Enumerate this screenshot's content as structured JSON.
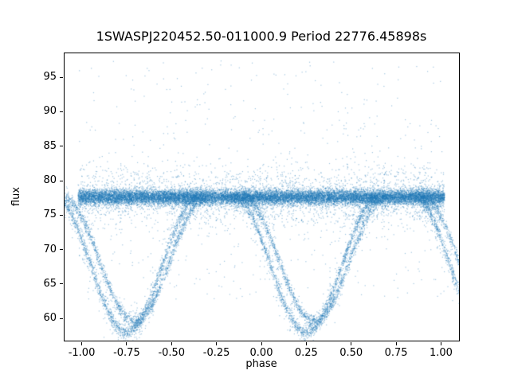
{
  "figure": {
    "background": "#ffffff",
    "axis_color": "#000000",
    "dot_color": "#1f77b4",
    "dot_alpha": 0.42
  },
  "chart_data": {
    "type": "scatter",
    "title": "1SWASPJ220452.50-011000.9 Period 22776.45898s",
    "xlabel": "phase",
    "ylabel": "flux",
    "xlim": [
      -1.1,
      1.1
    ],
    "ylim": [
      56.8,
      98.6
    ],
    "xtick_values": [
      -1.0,
      -0.75,
      -0.5,
      -0.25,
      0.0,
      0.25,
      0.5,
      0.75,
      1.0
    ],
    "xtick_labels": [
      "-1.00",
      "-0.75",
      "-0.50",
      "-0.25",
      "0.00",
      "0.25",
      "0.50",
      "0.75",
      "1.00"
    ],
    "ytick_values": [
      60,
      65,
      70,
      75,
      80,
      85,
      90,
      95
    ],
    "ytick_labels": [
      "60",
      "65",
      "70",
      "75",
      "80",
      "85",
      "90",
      "95"
    ],
    "grid": false,
    "legend": null,
    "description": "Phase-folded light curve: dense out-of-eclipse band near flux 77.6 across phase -1 to 1, with deep eclipse dips reaching flux ~58 centred at phase 0.25 (repeated at phase -0.75 and partially at the ±1.0 edges), shown as two closely spaced point tracks; sparse outliers scatter up to flux ~97.",
    "model": {
      "seed": 20776,
      "baseline_flux": 77.6,
      "band": {
        "n": 16000,
        "sigma": 0.55,
        "phase_min": -1.02,
        "phase_max": 1.02
      },
      "fuzz": {
        "n": 2600,
        "sigma": 2.1
      },
      "high_outliers": {
        "n": 300,
        "flux_min": 80.5,
        "flux_max": 97.4,
        "power": 1.7
      },
      "low_outliers": {
        "n": 230,
        "flux_min": 62.5,
        "flux_max": 76.0
      },
      "eclipses": {
        "centers": [
          -0.75,
          0.25,
          1.25
        ],
        "half_width": 0.4,
        "sigma": 0.5,
        "n_per_track": 1500,
        "tracks": [
          {
            "phase_shift": 0.0,
            "depth": 19.6
          },
          {
            "phase_shift": 0.045,
            "depth": 18.0
          }
        ],
        "n_diffuse": 380,
        "diffuse_sigma": 1.9,
        "min_flux": 58.0
      }
    }
  }
}
